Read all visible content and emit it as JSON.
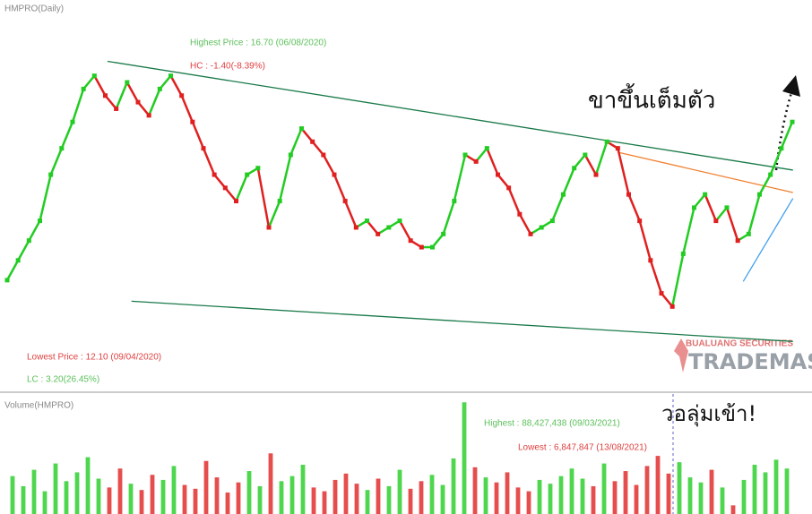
{
  "chart_data": [
    {
      "type": "line",
      "title": "HMPRO(Daily)",
      "annotations": [
        "Highest Price : 16.70 (06/08/2020)",
        "HC : -1.40(-8.39%)",
        "Lowest Price : 12.10 (09/04/2020)",
        "LC : 3.20(26.45%)",
        "ขาขึ้นเต็มตัว",
        "BUALUANG SECURITIES",
        "TRADEMASTER"
      ],
      "x": [
        0,
        1,
        2,
        3,
        4,
        5,
        6,
        7,
        8,
        9,
        10,
        11,
        12,
        13,
        14,
        15,
        16,
        17,
        18,
        19,
        20,
        21,
        22,
        23,
        24,
        25,
        26,
        27,
        28,
        29,
        30,
        31,
        32,
        33,
        34,
        35,
        36,
        37,
        38,
        39,
        40,
        41,
        42,
        43,
        44,
        45,
        46,
        47,
        48,
        49,
        50,
        51,
        52,
        53,
        54,
        55,
        56,
        57,
        58,
        59,
        60,
        61,
        62,
        63,
        64,
        65,
        66,
        67,
        68,
        69,
        70,
        71,
        72
      ],
      "xlim": [
        0,
        72
      ],
      "ylim": [
        11.3,
        17.25
      ],
      "series": [
        {
          "name": "HMPRO",
          "up_color": "#22cc22",
          "down_color": "#e02020",
          "values": [
            13.0,
            13.3,
            13.6,
            13.9,
            14.6,
            15.0,
            15.4,
            15.9,
            16.1,
            15.8,
            15.6,
            16.0,
            15.7,
            15.5,
            15.9,
            16.1,
            15.8,
            15.4,
            15.0,
            14.6,
            14.4,
            14.2,
            14.6,
            14.7,
            13.8,
            14.2,
            14.9,
            15.3,
            15.1,
            14.9,
            14.6,
            14.2,
            13.8,
            13.9,
            13.7,
            13.8,
            13.9,
            13.6,
            13.5,
            13.5,
            13.7,
            14.2,
            14.9,
            14.8,
            15.0,
            14.6,
            14.4,
            14.0,
            13.7,
            13.8,
            13.9,
            14.3,
            14.7,
            14.9,
            14.6,
            15.1,
            15.0,
            14.3,
            13.9,
            13.3,
            12.8,
            12.6,
            13.4,
            14.1,
            14.3,
            13.9,
            14.1,
            13.6,
            13.7,
            14.3,
            14.6,
            15.0,
            15.4
          ]
        }
      ],
      "trendlines": [
        {
          "color": "#1a7a4a",
          "x": [
            9.2,
            72.06
          ],
          "y": [
            16.32,
            14.67
          ]
        },
        {
          "color": "#1a7a4a",
          "x": [
            11.4,
            72.06
          ],
          "y": [
            12.68,
            12.07
          ]
        },
        {
          "color": "#f08030",
          "x": [
            56.0,
            72.06
          ],
          "y": [
            14.94,
            14.33
          ]
        },
        {
          "color": "#40a0f0",
          "x": [
            67.5,
            72.06
          ],
          "y": [
            12.98,
            14.24
          ]
        }
      ]
    },
    {
      "type": "bar",
      "title": "Volume(HMPRO)",
      "annotations": [
        "Highest : 88,427,438 (09/03/2021)",
        "Lowest : 6,847,847 (13/08/2021)",
        "วอลุ่มเข้า!"
      ],
      "ylim": [
        0,
        95000000
      ],
      "values": [
        30000000,
        22000000,
        35000000,
        18000000,
        40000000,
        26000000,
        33000000,
        45000000,
        28000000,
        21000000,
        36000000,
        24000000,
        19000000,
        31000000,
        27000000,
        38000000,
        23000000,
        20000000,
        42000000,
        29000000,
        17000000,
        25000000,
        34000000,
        22000000,
        48000000,
        26000000,
        30000000,
        39000000,
        21000000,
        18000000,
        27000000,
        32000000,
        24000000,
        19000000,
        28000000,
        22000000,
        35000000,
        20000000,
        26000000,
        31000000,
        23000000,
        44000000,
        88427438,
        37000000,
        29000000,
        25000000,
        33000000,
        21000000,
        18000000,
        27000000,
        24000000,
        30000000,
        36000000,
        28000000,
        22000000,
        40000000,
        26000000,
        34000000,
        23000000,
        38000000,
        46000000,
        32000000,
        41000000,
        29000000,
        25000000,
        35000000,
        21000000,
        6847847,
        27000000,
        39000000,
        33000000,
        43000000,
        36000000
      ]
    }
  ]
}
